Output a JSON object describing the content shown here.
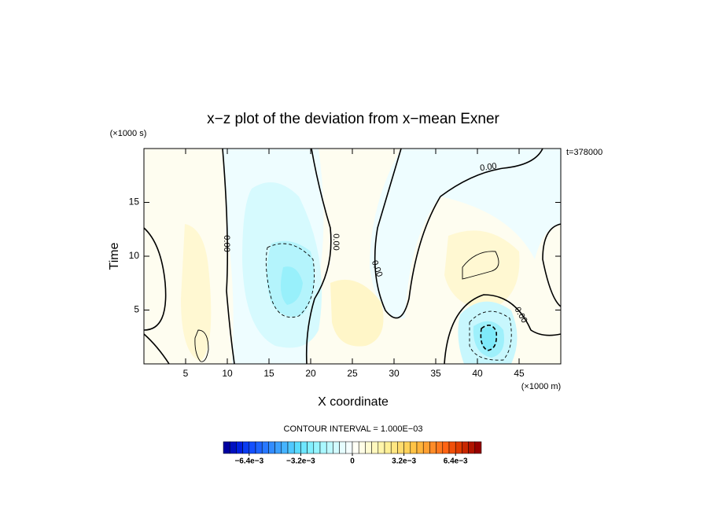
{
  "chart_data": {
    "type": "contour",
    "title": "x−z plot of the deviation from x−mean Exner",
    "y_unit_label": "(×1000 s)",
    "time_label": "t=378000",
    "ylabel": "Time",
    "xlabel": "X coordinate",
    "x_unit_label": "(×1000 m)",
    "xlim": [
      0,
      50
    ],
    "xticks": [
      5,
      10,
      15,
      20,
      25,
      30,
      35,
      40,
      45
    ],
    "ylim": [
      0,
      20
    ],
    "yticks": [
      5,
      10,
      15
    ],
    "contour_labels": [
      "0.00",
      "0.00",
      "0.00",
      "0.00",
      "0.00"
    ],
    "colorbar": {
      "title": "CONTOUR INTERVAL = 1.000E−03",
      "lim": [
        -0.008,
        0.008
      ],
      "ticks": [
        {
          "value": -0.0064,
          "label": "−6.4e−3"
        },
        {
          "value": -0.0032,
          "label": "−3.2e−3"
        },
        0,
        {
          "value": 0.0032,
          "label": "3.2e−3"
        },
        {
          "value": 0.0064,
          "label": "6.4e−3"
        }
      ],
      "colors": [
        "#0000a0",
        "#0010c0",
        "#0020e0",
        "#0a3cf0",
        "#1450ff",
        "#1e64ff",
        "#2878ff",
        "#328cff",
        "#3ca0ff",
        "#46b4ff",
        "#50c8ff",
        "#5adcff",
        "#6ee6ff",
        "#82f0ff",
        "#96f5ff",
        "#aaf8ff",
        "#bef9ff",
        "#d2fbff",
        "#e6fdff",
        "#f5feff",
        "#fffff5",
        "#fffde6",
        "#fffbd2",
        "#fff8be",
        "#fff5aa",
        "#fff096",
        "#ffe682",
        "#ffdc6e",
        "#ffd25a",
        "#ffc346",
        "#ffb43c",
        "#ffa032",
        "#ff8c28",
        "#ff781e",
        "#ff6414",
        "#f0500a",
        "#e03c00",
        "#c82800",
        "#b01400",
        "#960000"
      ]
    }
  }
}
